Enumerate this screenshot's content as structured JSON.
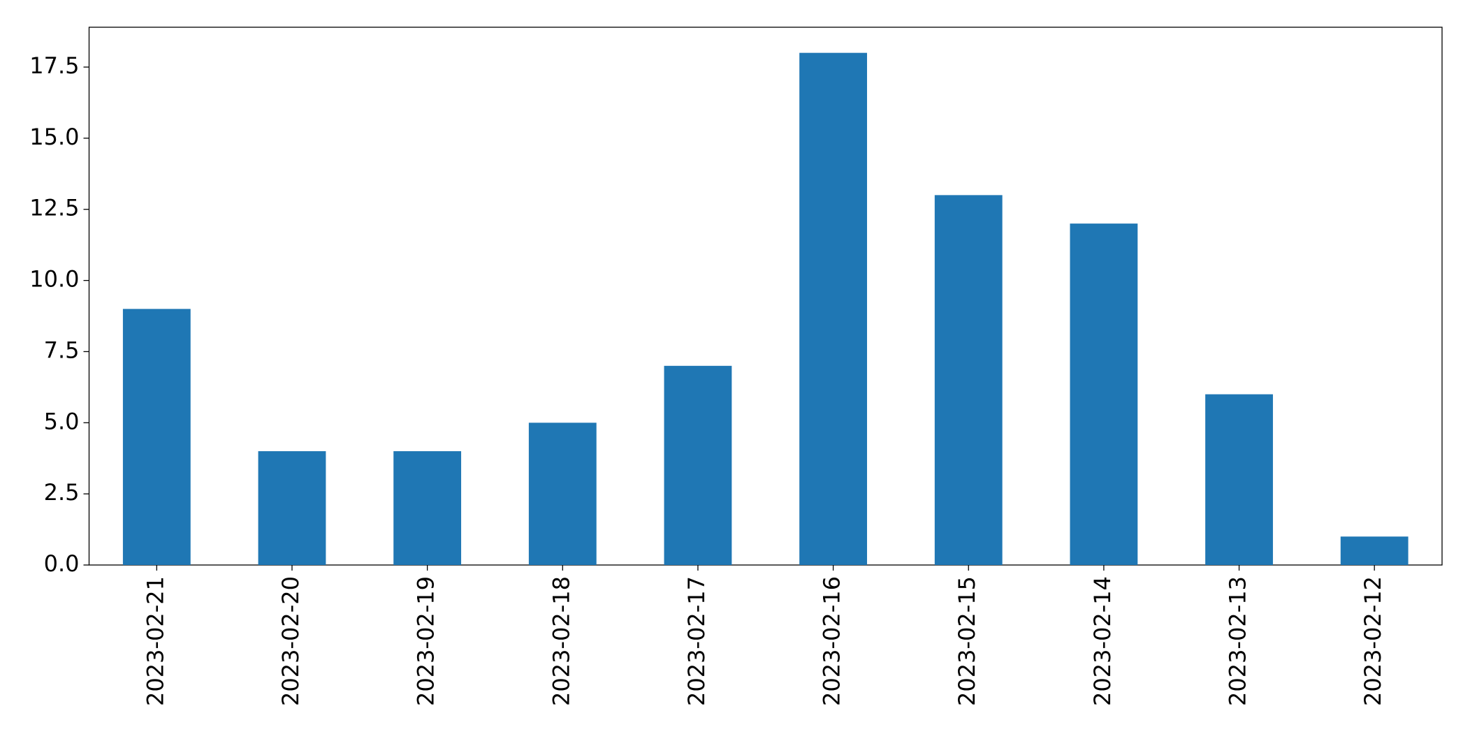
{
  "chart_data": {
    "type": "bar",
    "categories": [
      "2023-02-21",
      "2023-02-20",
      "2023-02-19",
      "2023-02-18",
      "2023-02-17",
      "2023-02-16",
      "2023-02-15",
      "2023-02-14",
      "2023-02-13",
      "2023-02-12"
    ],
    "values": [
      9,
      4,
      4,
      5,
      7,
      18,
      13,
      12,
      6,
      1
    ],
    "color": "#1f77b4",
    "ylim": [
      0,
      18.9
    ],
    "yticks": [
      {
        "value": 0,
        "label": "0.0"
      },
      2.5,
      {
        "value": 5,
        "label": "5.0"
      },
      7.5,
      {
        "value": 10,
        "label": "10.0"
      },
      12.5,
      {
        "value": 15,
        "label": "15.0"
      },
      17.5
    ],
    "grid": false
  }
}
